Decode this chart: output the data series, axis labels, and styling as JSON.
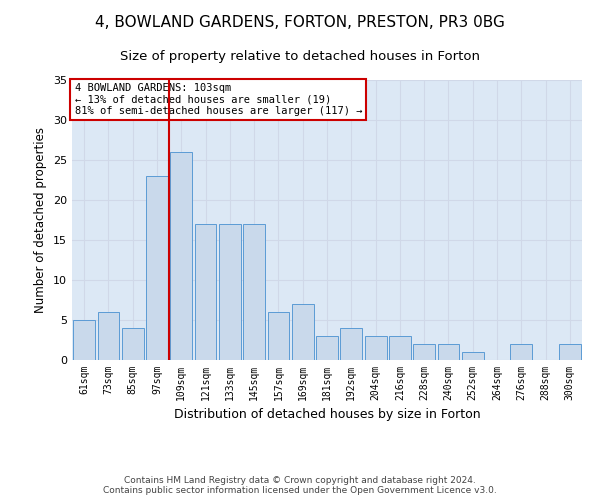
{
  "title1": "4, BOWLAND GARDENS, FORTON, PRESTON, PR3 0BG",
  "title2": "Size of property relative to detached houses in Forton",
  "xlabel": "Distribution of detached houses by size in Forton",
  "ylabel": "Number of detached properties",
  "categories": [
    "61sqm",
    "73sqm",
    "85sqm",
    "97sqm",
    "109sqm",
    "121sqm",
    "133sqm",
    "145sqm",
    "157sqm",
    "169sqm",
    "181sqm",
    "192sqm",
    "204sqm",
    "216sqm",
    "228sqm",
    "240sqm",
    "252sqm",
    "264sqm",
    "276sqm",
    "288sqm",
    "300sqm"
  ],
  "values": [
    5,
    6,
    4,
    23,
    26,
    17,
    17,
    17,
    6,
    7,
    3,
    4,
    3,
    3,
    2,
    2,
    1,
    0,
    2,
    0,
    2
  ],
  "bar_color": "#c9d9eb",
  "bar_edge_color": "#5b9bd5",
  "grid_color": "#d0d8e8",
  "background_color": "#dce8f5",
  "vline_color": "#cc0000",
  "vline_x": 3.5,
  "annotation_text": "4 BOWLAND GARDENS: 103sqm\n← 13% of detached houses are smaller (19)\n81% of semi-detached houses are larger (117) →",
  "annotation_box_color": "#ffffff",
  "annotation_box_edge": "#cc0000",
  "ylim": [
    0,
    35
  ],
  "yticks": [
    0,
    5,
    10,
    15,
    20,
    25,
    30,
    35
  ],
  "footer": "Contains HM Land Registry data © Crown copyright and database right 2024.\nContains public sector information licensed under the Open Government Licence v3.0.",
  "title1_fontsize": 11,
  "title2_fontsize": 9.5,
  "xlabel_fontsize": 9,
  "ylabel_fontsize": 8.5,
  "footer_fontsize": 6.5
}
